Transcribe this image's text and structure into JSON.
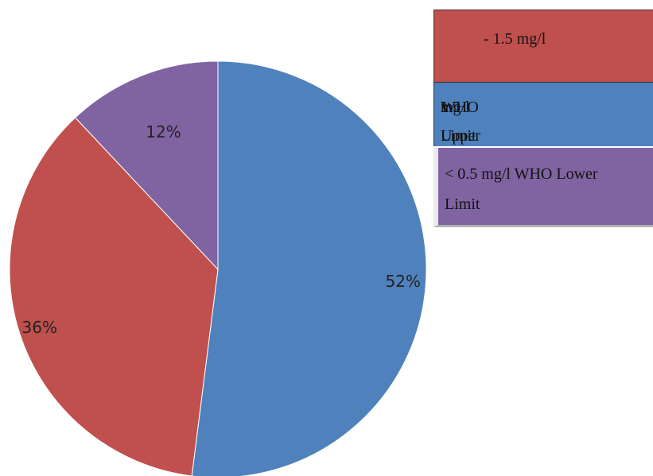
{
  "chart_data": {
    "type": "pie",
    "slices": [
      {
        "label": "1.5 mg/l WHO Upper Limit",
        "value": 52,
        "text": "52%",
        "color": "#4f81bd"
      },
      {
        "label": "- 1.5 mg/l",
        "value": 36,
        "text": "36%",
        "color": "#c0504d"
      },
      {
        "label": "< 0.5 mg/l WHO Lower Limit",
        "value": 12,
        "text": "12%",
        "color": "#8064a2"
      }
    ],
    "legend": {
      "red": "- 1.5 mg/l",
      "blue": {
        "w1": "1.5",
        "w2": "mg/l",
        "w3": "WHO",
        "w4": "Upper",
        "w5": "Limit"
      },
      "purple": {
        "line1": "< 0.5 mg/l WHO Lower",
        "line2": "Limit"
      }
    }
  }
}
